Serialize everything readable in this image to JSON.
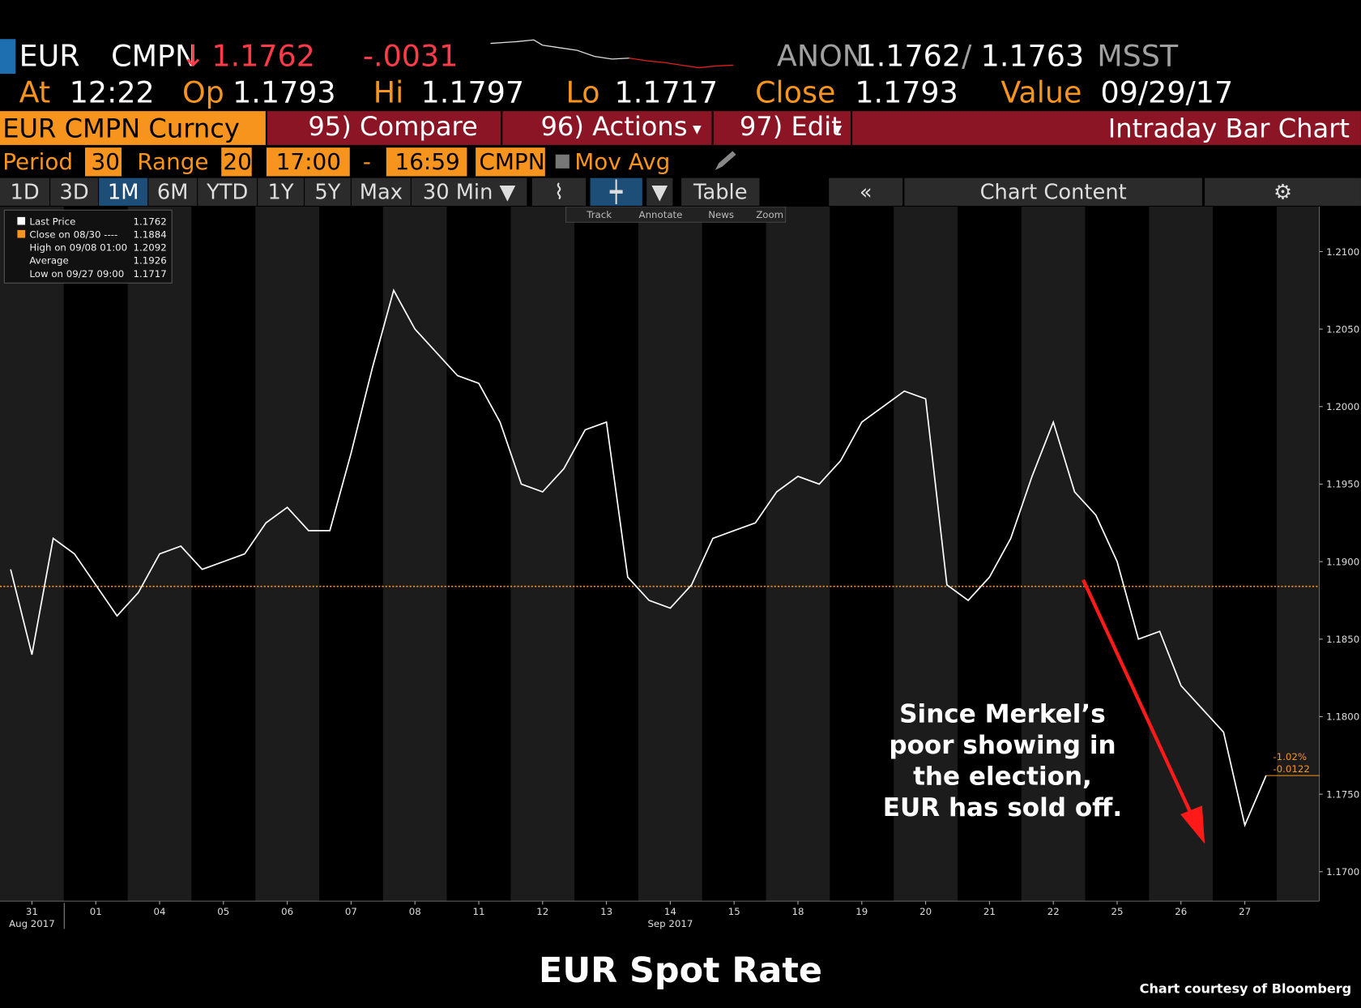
{
  "header": {
    "ticker": "EUR",
    "source": "CMPN",
    "arrow": "↓",
    "last": "1.1762",
    "change": "-.0031",
    "anon": "ANON",
    "bid": "1.1762",
    "separator": "/",
    "ask": "1.1763",
    "msst": "MSST",
    "fields": [
      {
        "label": "At",
        "value": "12:22"
      },
      {
        "label": "Op",
        "value": "1.1793"
      },
      {
        "label": "Hi",
        "value": "1.1797"
      },
      {
        "label": "Lo",
        "value": "1.1717"
      },
      {
        "label": "Close",
        "value": "1.1793"
      },
      {
        "label": "Value",
        "value": "09/29/17"
      }
    ]
  },
  "menu": {
    "security": "EUR CMPN Curncy",
    "compare": "95) Compare",
    "actions": "96) Actions",
    "edit": "97) Edit",
    "view": "Intraday Bar Chart"
  },
  "settings": {
    "period_label": "Period",
    "period": "30",
    "range_label": "Range",
    "range": "20",
    "start": "17:00",
    "dash": "-",
    "end": "16:59",
    "source": "CMPN",
    "mov_avg": "Mov Avg"
  },
  "toolbar": {
    "ranges": [
      "1D",
      "3D",
      "1M",
      "6M",
      "YTD",
      "1Y",
      "5Y",
      "Max",
      "30 Min ▼"
    ],
    "table": "Table",
    "content": "Chart Content",
    "tools": [
      "Track",
      "Annotate",
      "News",
      "Zoom"
    ]
  },
  "chart_data": {
    "type": "line",
    "categories": [
      null,
      "31",
      null,
      null,
      "01",
      null,
      null,
      "04",
      null,
      null,
      "05",
      null,
      null,
      "06",
      null,
      null,
      "07",
      null,
      null,
      "08",
      null,
      null,
      "11",
      null,
      null,
      "12",
      null,
      null,
      "13",
      null,
      null,
      "14",
      null,
      null,
      "15",
      null,
      null,
      "18",
      null,
      null,
      "19",
      null,
      null,
      "20",
      null,
      null,
      "21",
      null,
      null,
      "22",
      null,
      null,
      "25",
      null,
      null,
      "26",
      null,
      null,
      "27",
      null
    ],
    "month_labels": [
      "Aug 2017",
      "Sep 2017"
    ],
    "series": [
      {
        "name": "Last Price",
        "color": "#ffffff",
        "values": [
          1.1895,
          1.184,
          1.1915,
          1.1905,
          1.1885,
          1.1865,
          1.188,
          1.1905,
          1.191,
          1.1895,
          1.19,
          1.1905,
          1.1925,
          1.1935,
          1.192,
          1.192,
          1.197,
          1.2025,
          1.2075,
          1.205,
          1.2035,
          1.202,
          1.2015,
          1.199,
          1.195,
          1.1945,
          1.196,
          1.1985,
          1.199,
          1.189,
          1.1875,
          1.187,
          1.1885,
          1.1915,
          1.192,
          1.1925,
          1.1945,
          1.1955,
          1.195,
          1.1965,
          1.199,
          1.2,
          1.201,
          1.2005,
          1.1885,
          1.1875,
          1.189,
          1.1915,
          1.1955,
          1.199,
          1.1945,
          1.193,
          1.19,
          1.185,
          1.1855,
          1.182,
          1.1805,
          1.179,
          1.173,
          1.1762
        ]
      }
    ],
    "close_line": {
      "value": 1.1884,
      "color": "#f7941d"
    },
    "last_change_labels": [
      "-1.02%",
      "-0.0122"
    ],
    "legend_box": [
      {
        "label": "Last Price",
        "value": "1.1762"
      },
      {
        "label": "Close on 08/30 ----",
        "value": "1.1884"
      },
      {
        "label": "High on 09/08 01:00",
        "value": "1.2092"
      },
      {
        "label": "Average",
        "value": "1.1926"
      },
      {
        "label": "Low on 09/27 09:00",
        "value": "1.1717"
      }
    ],
    "ylim": [
      1.1681,
      1.2129
    ],
    "yticks": [
      {
        "value": 1.17,
        "label": "1.1700"
      },
      {
        "value": 1.175,
        "label": "1.1750"
      },
      {
        "value": 1.18,
        "label": "1.1800"
      },
      {
        "value": 1.185,
        "label": "1.1850"
      },
      {
        "value": 1.19,
        "label": "1.1900"
      },
      {
        "value": 1.195,
        "label": "1.1950"
      },
      {
        "value": 1.2,
        "label": "1.2000"
      },
      {
        "value": 1.205,
        "label": "1.2050"
      },
      {
        "value": 1.21,
        "label": "1.2100"
      }
    ],
    "annotation": [
      "Since Merkel’s",
      "poor showing in",
      "the election,",
      "EUR has sold off."
    ]
  },
  "footer": {
    "title": "EUR Spot Rate",
    "credit": "Chart courtesy of Bloomberg"
  }
}
